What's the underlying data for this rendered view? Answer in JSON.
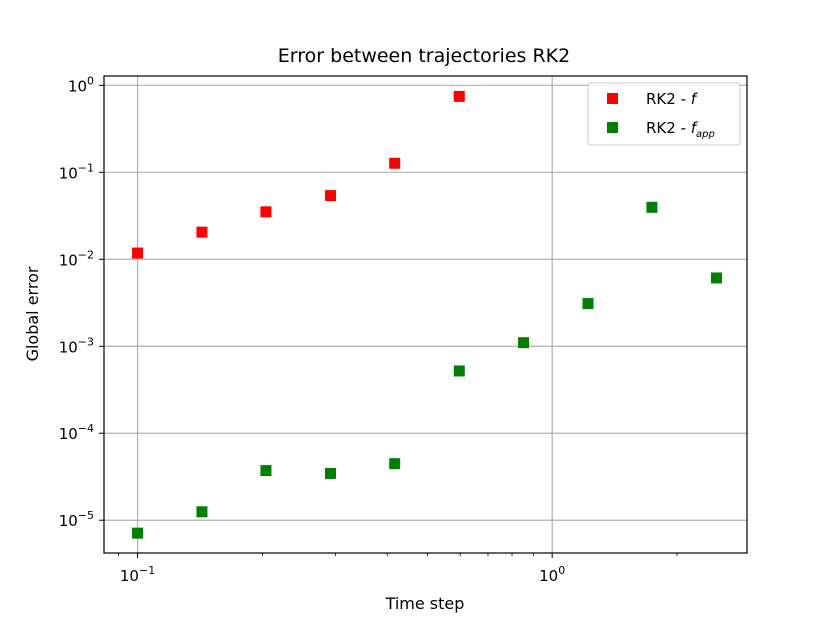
{
  "chart_data": {
    "type": "scatter",
    "title": "Error between trajectories RK2",
    "xlabel": "Time step",
    "ylabel": "Global error",
    "xscale": "log",
    "yscale": "log",
    "xlim": [
      0.083,
      2.95
    ],
    "ylim": [
      4.2e-06,
      1.28
    ],
    "grid": true,
    "legend_position": "top-right",
    "x_ticks": [
      {
        "value": 0.1,
        "base": "10",
        "exp": "−1"
      },
      {
        "value": 1,
        "base": "10",
        "exp": "0"
      }
    ],
    "y_ticks": [
      {
        "value": 1e-05,
        "base": "10",
        "exp": "−5"
      },
      {
        "value": 0.0001,
        "base": "10",
        "exp": "−4"
      },
      {
        "value": 0.001,
        "base": "10",
        "exp": "−3"
      },
      {
        "value": 0.01,
        "base": "10",
        "exp": "−2"
      },
      {
        "value": 0.1,
        "base": "10",
        "exp": "−1"
      },
      {
        "value": 1,
        "base": "10",
        "exp": "0"
      }
    ],
    "series": [
      {
        "name": "RK2 - f",
        "legend_main": "RK2 - ",
        "legend_symbol": "f",
        "legend_sub": "",
        "color": "#ff0000",
        "marker": "square",
        "points": [
          [
            0.1,
            0.0118
          ],
          [
            0.143,
            0.0205
          ],
          [
            0.204,
            0.0351
          ],
          [
            0.292,
            0.054
          ],
          [
            0.417,
            0.127
          ],
          [
            0.597,
            0.746
          ]
        ]
      },
      {
        "name": "RK2 - f_app",
        "legend_main": "RK2 - ",
        "legend_symbol": "f",
        "legend_sub": "app",
        "color": "#008000",
        "marker": "square",
        "points": [
          [
            0.1,
            7.1e-06
          ],
          [
            0.143,
            1.25e-05
          ],
          [
            0.204,
            3.72e-05
          ],
          [
            0.292,
            3.45e-05
          ],
          [
            0.417,
            4.47e-05
          ],
          [
            0.597,
            0.00052
          ],
          [
            0.853,
            0.0011
          ],
          [
            1.22,
            0.0031
          ],
          [
            1.74,
            0.0396
          ],
          [
            2.49,
            0.0061
          ]
        ]
      }
    ]
  }
}
